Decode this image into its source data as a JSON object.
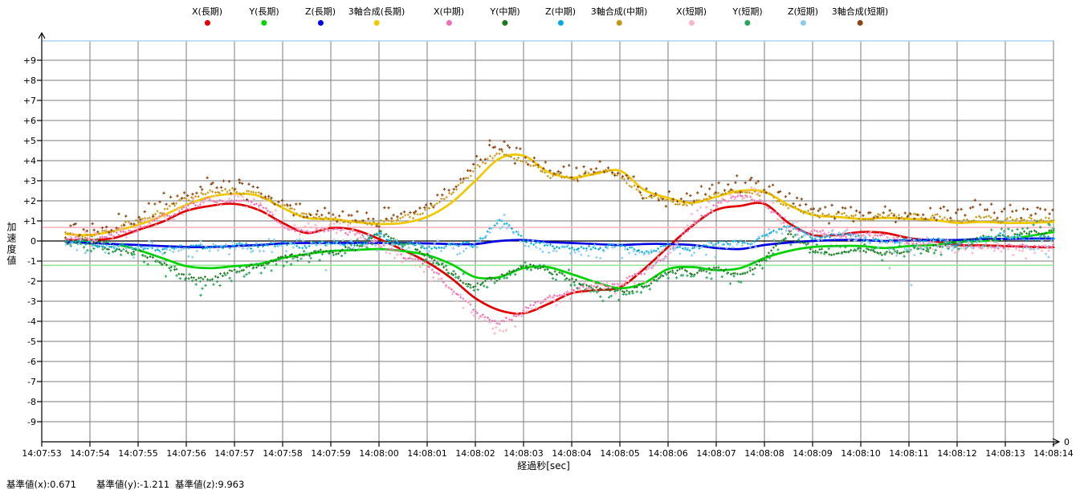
{
  "chart_data": {
    "type": "scatter",
    "title": "",
    "x_axis": {
      "label": "経過秒[sec]",
      "origin_label": "0",
      "tick_labels": [
        "14:07:53",
        "14:07:54",
        "14:07:55",
        "14:07:56",
        "14:07:57",
        "14:07:58",
        "14:07:59",
        "14:08:00",
        "14:08:01",
        "14:08:02",
        "14:08:03",
        "14:08:04",
        "14:08:05",
        "14:08:06",
        "14:08:07",
        "14:08:08",
        "14:08:09",
        "14:08:10",
        "14:08:11",
        "14:08:12",
        "14:08:13",
        "14:08:14"
      ]
    },
    "y_axis": {
      "label": "加速度値",
      "min": -10,
      "max": 10,
      "tick_step": 1,
      "tick_labels": [
        "+9",
        "+8",
        "+7",
        "+6",
        "+5",
        "+4",
        "+3",
        "+2",
        "+1",
        "0",
        "-1",
        "-2",
        "-3",
        "-4",
        "-5",
        "-6",
        "-7",
        "-8",
        "-9"
      ]
    },
    "reference_lines": [
      {
        "name": "基準値(x)",
        "value": 0.671,
        "color": "#ffb6c1"
      },
      {
        "name": "基準値(y)",
        "value": -1.211,
        "color": "#98e698"
      },
      {
        "name": "基準値(z)",
        "value": 9.963,
        "color": "#b4d9ee"
      }
    ],
    "footer": {
      "labels": [
        "基準値(x):0.671",
        "基準値(y):-1.211",
        "基準値(z):9.963"
      ]
    },
    "grid": true,
    "legend_position": "top",
    "t_offsets_sec": [
      0.5,
      1,
      1.5,
      2,
      2.5,
      3,
      3.5,
      4,
      4.5,
      5,
      5.5,
      6,
      6.5,
      7,
      7.5,
      8,
      8.5,
      9,
      9.5,
      10,
      10.5,
      11,
      11.5,
      12,
      12.5,
      13,
      13.5,
      14,
      14.5,
      15,
      15.5,
      16,
      16.5,
      17,
      17.5,
      18,
      18.5,
      19,
      19.5,
      20,
      20.5,
      21
    ],
    "t_zero_label": "14:07:53",
    "series": [
      {
        "name": "X(長期)",
        "period": "long",
        "style": "line",
        "color": "#e10000",
        "values": [
          0.05,
          0.05,
          0.15,
          0.55,
          0.95,
          1.5,
          1.75,
          1.85,
          1.55,
          0.9,
          0.4,
          0.65,
          0.55,
          0.1,
          -0.45,
          -1.05,
          -1.85,
          -2.85,
          -3.45,
          -3.6,
          -3.15,
          -2.6,
          -2.45,
          -2.3,
          -1.4,
          -0.3,
          0.75,
          1.55,
          1.75,
          1.85,
          0.9,
          0.3,
          0.3,
          0.45,
          0.4,
          0.15,
          0,
          -0.2,
          -0.22,
          -0.25,
          -0.3,
          -0.32
        ]
      },
      {
        "name": "Y(長期)",
        "period": "long",
        "style": "line",
        "color": "#00d300",
        "values": [
          -0.05,
          -0.05,
          -0.15,
          -0.45,
          -0.85,
          -1.25,
          -1.35,
          -1.25,
          -1.15,
          -0.85,
          -0.65,
          -0.5,
          -0.45,
          -0.4,
          -0.5,
          -0.7,
          -1.15,
          -1.8,
          -1.8,
          -1.35,
          -1.3,
          -1.65,
          -2.05,
          -2.35,
          -2.1,
          -1.4,
          -1.3,
          -1.45,
          -1.35,
          -0.85,
          -0.5,
          -0.3,
          -0.25,
          -0.25,
          -0.35,
          -0.25,
          -0.2,
          -0.05,
          0,
          0.1,
          0.25,
          0.45
        ]
      },
      {
        "name": "Z(長期)",
        "period": "long",
        "style": "line",
        "color": "#0000e1",
        "values": [
          -0.05,
          -0.1,
          -0.15,
          -0.2,
          -0.25,
          -0.3,
          -0.3,
          -0.25,
          -0.2,
          -0.12,
          -0.1,
          -0.1,
          -0.1,
          -0.1,
          -0.1,
          -0.12,
          -0.15,
          -0.15,
          0,
          0.05,
          -0.05,
          -0.1,
          -0.15,
          -0.2,
          -0.15,
          -0.15,
          -0.2,
          -0.35,
          -0.4,
          -0.2,
          -0.08,
          0,
          0.05,
          0.05,
          0,
          0.05,
          0.05,
          0.05,
          0.1,
          0.1,
          0.12,
          0.12
        ]
      },
      {
        "name": "3軸合成(長期)",
        "period": "long",
        "style": "line",
        "color": "#f0c800",
        "values": [
          0.35,
          0.3,
          0.5,
          0.8,
          1.25,
          1.8,
          2.2,
          2.35,
          2.25,
          1.65,
          1.15,
          1.1,
          0.95,
          0.85,
          0.9,
          1.2,
          1.9,
          3,
          4.1,
          4.25,
          3.45,
          3.15,
          3.35,
          3.5,
          2.55,
          2.15,
          1.9,
          2.2,
          2.5,
          2.45,
          1.8,
          1.3,
          1.2,
          1.1,
          1.15,
          1.1,
          1.05,
          0.9,
          0.95,
          0.9,
          0.9,
          0.95
        ]
      },
      {
        "name": "X(中期)",
        "period": "mid",
        "style": "noisy",
        "color": "#f06eb4",
        "values": [
          0.05,
          0.1,
          0.3,
          0.6,
          1.1,
          1.65,
          2.05,
          2.1,
          1.8,
          0.8,
          0.5,
          0.55,
          0.35,
          -0.15,
          -0.75,
          -1.2,
          -2.3,
          -3.5,
          -4.15,
          -3.5,
          -2.8,
          -2.4,
          -2.25,
          -2.15,
          -1.55,
          -0.6,
          0.9,
          1.8,
          2.3,
          1.95,
          0.7,
          0.4,
          0.35,
          0.3,
          0.2,
          0,
          -0.15,
          -0.2,
          -0.25,
          -0.3,
          -0.25,
          -0.2
        ]
      },
      {
        "name": "Y(中期)",
        "period": "mid",
        "style": "noisy",
        "color": "#1c781c",
        "values": [
          -0.05,
          -0.1,
          -0.35,
          -0.55,
          -1.1,
          -1.8,
          -1.9,
          -1.45,
          -1.2,
          -0.85,
          -0.7,
          -0.55,
          -0.35,
          0.35,
          -0.1,
          -0.7,
          -1.55,
          -2.25,
          -1.85,
          -1.15,
          -1.4,
          -1.9,
          -2.4,
          -2.55,
          -2.2,
          -1.5,
          -1.6,
          -1.35,
          -1.7,
          -0.9,
          0.25,
          -0.45,
          -0.55,
          -0.35,
          -0.6,
          -0.35,
          -0.35,
          -0.15,
          0.1,
          0.25,
          0.45,
          0.6
        ]
      },
      {
        "name": "Z(中期)",
        "period": "mid",
        "style": "noisy",
        "color": "#00acdf",
        "values": [
          -0.05,
          -0.15,
          -0.2,
          -0.3,
          -0.35,
          -0.3,
          -0.35,
          -0.3,
          -0.25,
          -0.15,
          -0.2,
          -0.1,
          -0.15,
          0.25,
          -0.2,
          -0.25,
          -0.3,
          -0.2,
          1.1,
          0.1,
          -0.25,
          -0.3,
          -0.35,
          -0.3,
          -0.5,
          -0.3,
          -0.4,
          -0.15,
          -0.1,
          0.2,
          0.75,
          0.2,
          0.3,
          0.1,
          -0.1,
          0.1,
          0.05,
          -0.1,
          0.05,
          0.3,
          0.1,
          0.15
        ]
      },
      {
        "name": "3軸合成(中期)",
        "period": "mid",
        "style": "noisy",
        "color": "#c59514",
        "values": [
          0.4,
          0.35,
          0.6,
          1,
          1.5,
          2.1,
          2.5,
          2.55,
          2.3,
          1.7,
          1.25,
          1.1,
          1,
          0.9,
          1.1,
          1.5,
          2.4,
          3.6,
          4.4,
          4,
          3.3,
          3.2,
          3.45,
          3.3,
          2.3,
          1.95,
          1.85,
          2.3,
          2.45,
          2.4,
          1.7,
          1.35,
          1.3,
          1.15,
          1.3,
          1.2,
          1.15,
          1.05,
          1.15,
          1.05,
          1.1,
          1.1
        ]
      },
      {
        "name": "X(短期)",
        "period": "short",
        "style": "scatter",
        "color": "#f9b6c5",
        "values": [
          0.1,
          0.15,
          0.4,
          0.7,
          1.2,
          1.8,
          2.2,
          2.25,
          1.9,
          0.9,
          0.6,
          0.6,
          0.4,
          -0.2,
          -0.85,
          -1.35,
          -2.5,
          -3.7,
          -4.4,
          -3.7,
          -2.95,
          -2.5,
          -2.35,
          -2.25,
          -1.65,
          -0.7,
          1.1,
          2,
          2.4,
          2.1,
          0.8,
          0.45,
          0.4,
          0.35,
          0.25,
          0.05,
          -0.2,
          -0.35,
          -0.4,
          -0.45,
          -0.4,
          -0.45
        ]
      },
      {
        "name": "Y(短期)",
        "period": "short",
        "style": "scatter",
        "color": "#2ca55c",
        "values": [
          -0.1,
          -0.15,
          -0.45,
          -0.7,
          -1.25,
          -2,
          -2.2,
          -1.6,
          -1.35,
          -1,
          -0.8,
          -0.6,
          -0.4,
          0.3,
          -0.2,
          -0.8,
          -1.7,
          -2.45,
          -2,
          -1.3,
          -1.55,
          -2.1,
          -2.6,
          -2.8,
          -2.4,
          -1.65,
          -1.75,
          -1.5,
          -1.9,
          -1,
          0.35,
          -0.5,
          -0.6,
          -0.4,
          -0.65,
          -0.4,
          -0.4,
          -0.2,
          0.15,
          0.35,
          0.55,
          0.7
        ]
      },
      {
        "name": "Z(短期)",
        "period": "short",
        "style": "scatter",
        "color": "#8ccdec",
        "values": [
          -0.1,
          -0.35,
          -0.3,
          -0.4,
          -0.45,
          -0.4,
          -0.45,
          -0.4,
          -0.3,
          -0.25,
          -0.3,
          -0.2,
          -0.25,
          0.15,
          -0.3,
          -0.35,
          -0.45,
          -0.3,
          0.9,
          0,
          -0.35,
          -0.45,
          -0.5,
          -0.45,
          -0.7,
          -0.45,
          -0.55,
          -0.35,
          -0.3,
          0.1,
          0.6,
          0.1,
          0.2,
          0,
          -0.25,
          -0.6,
          -0.1,
          -0.25,
          -0.2,
          0.1,
          -0.1,
          -0.3
        ]
      },
      {
        "name": "3軸合成(短期)",
        "period": "short",
        "style": "scatter",
        "color": "#8b4513",
        "values": [
          0.55,
          0.5,
          0.8,
          1.2,
          1.8,
          2.4,
          2.8,
          2.75,
          2.5,
          1.9,
          1.45,
          1.25,
          1.15,
          1.05,
          1.3,
          1.75,
          2.7,
          4,
          4.8,
          4.2,
          3.5,
          3.4,
          3.65,
          3.45,
          2.5,
          2.1,
          2,
          2.8,
          2.85,
          2.7,
          2.2,
          1.6,
          1.55,
          1.3,
          1.45,
          1.35,
          1.3,
          1.5,
          1.6,
          1.45,
          1.5,
          1.6
        ]
      }
    ],
    "outliers": [
      {
        "series": 11,
        "t": 9.3,
        "v": 5.0
      },
      {
        "series": 11,
        "t": 9.6,
        "v": 4.95
      },
      {
        "series": 11,
        "t": 4.1,
        "v": 3.05
      },
      {
        "series": 11,
        "t": 7.2,
        "v": 1.65
      },
      {
        "series": 10,
        "t": 9.6,
        "v": 1.3
      },
      {
        "series": 10,
        "t": 18.05,
        "v": -2.2
      },
      {
        "series": 10,
        "t": 17.6,
        "v": -1.35
      },
      {
        "series": 10,
        "t": 5.9,
        "v": -1.45
      },
      {
        "series": 10,
        "t": 12.6,
        "v": -1.3
      },
      {
        "series": 10,
        "t": 20.9,
        "v": -0.8
      },
      {
        "series": 9,
        "t": 3.3,
        "v": -2.7
      },
      {
        "series": 9,
        "t": 20.9,
        "v": 0.85
      },
      {
        "series": 8,
        "t": 9.4,
        "v": -4.6
      },
      {
        "series": 8,
        "t": 14.8,
        "v": 2.6
      }
    ]
  }
}
